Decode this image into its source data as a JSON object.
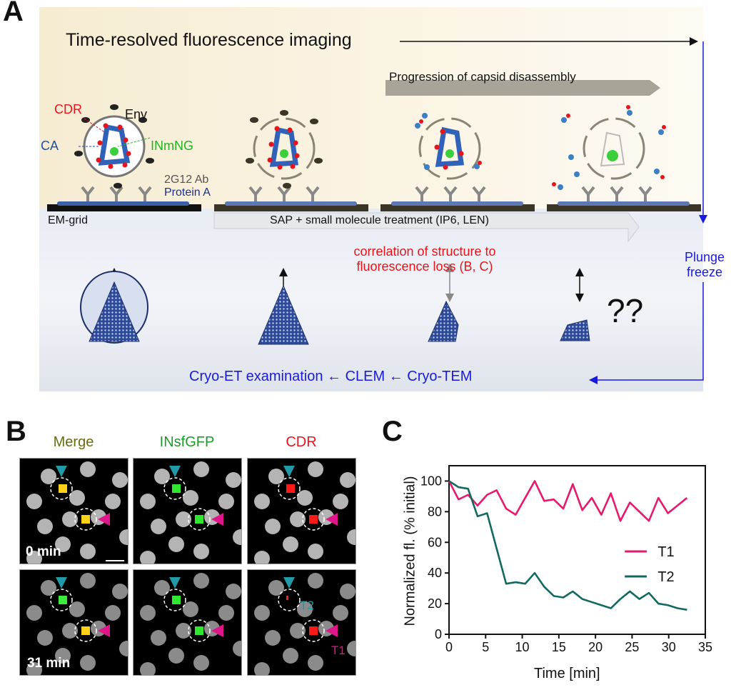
{
  "panel_a": {
    "label": "A",
    "title": "Time-resolved fluorescence imaging",
    "progression": "Progression of capsid disassembly",
    "labels": {
      "cdr": "CDR",
      "env": "Env",
      "ca": "CA",
      "inmng": "INmNG",
      "ab": "2G12 Ab",
      "protein_a": "Protein A"
    },
    "em_grid": "EM-grid",
    "treatment": "SAP + small molecule treatment (IP6, LEN)",
    "correlation_line1": "correlation of structure to",
    "correlation_line2": "fluorescence loss (B, C)",
    "unknown": "??",
    "plunge_line1": "Plunge",
    "plunge_line2": "freeze",
    "workflow": "Cryo-ET examination ← CLEM ← Cryo-TEM",
    "colors": {
      "cdr": "#e8141c",
      "ca": "#1d4fa3",
      "inmng": "#22b422",
      "flow": "#1a1adc"
    }
  },
  "panel_b": {
    "label": "B",
    "columns": [
      {
        "title": "Merge",
        "color": "#6b6b12"
      },
      {
        "title": "INsfGFP",
        "color": "#1e9a2a"
      },
      {
        "title": "CDR",
        "color": "#e8141c"
      }
    ],
    "rows": [
      {
        "time": "0 min"
      },
      {
        "time": "31 min"
      }
    ],
    "markers": {
      "t1": "T1",
      "t2": "T2",
      "t1_color": "#e0158a",
      "t2_color": "#1f9aa6"
    }
  },
  "chart_data": {
    "label": "C",
    "type": "line",
    "xlabel": "Time [min]",
    "ylabel": "Normalized fl. (% initial)",
    "xlim": [
      0,
      35
    ],
    "ylim": [
      0,
      110
    ],
    "xticks": [
      0,
      5,
      10,
      15,
      20,
      25,
      30,
      35
    ],
    "yticks": [
      0,
      20,
      40,
      60,
      80,
      100
    ],
    "grid": false,
    "legend": "right",
    "x": [
      0,
      1.3,
      2.6,
      3.9,
      5.2,
      6.5,
      7.8,
      9.1,
      10.4,
      11.7,
      13,
      14.3,
      15.6,
      16.9,
      18.2,
      19.5,
      20.8,
      22.1,
      23.4,
      24.7,
      26,
      27.3,
      28.6,
      29.9,
      31.2,
      32.5
    ],
    "series": [
      {
        "name": "T1",
        "color": "#e8186c",
        "values": [
          100,
          88,
          91,
          84,
          91,
          94,
          82,
          78,
          89,
          100,
          87,
          88,
          82,
          98,
          81,
          89,
          78,
          92,
          74,
          86,
          80,
          74,
          89,
          79,
          84,
          89
        ]
      },
      {
        "name": "T2",
        "color": "#12695f",
        "values": [
          100,
          96,
          95,
          77,
          79,
          56,
          33,
          34,
          33,
          40,
          31,
          25,
          24,
          28,
          23,
          21,
          19,
          17,
          23,
          28,
          23,
          27,
          20,
          19,
          17,
          16
        ]
      }
    ]
  }
}
